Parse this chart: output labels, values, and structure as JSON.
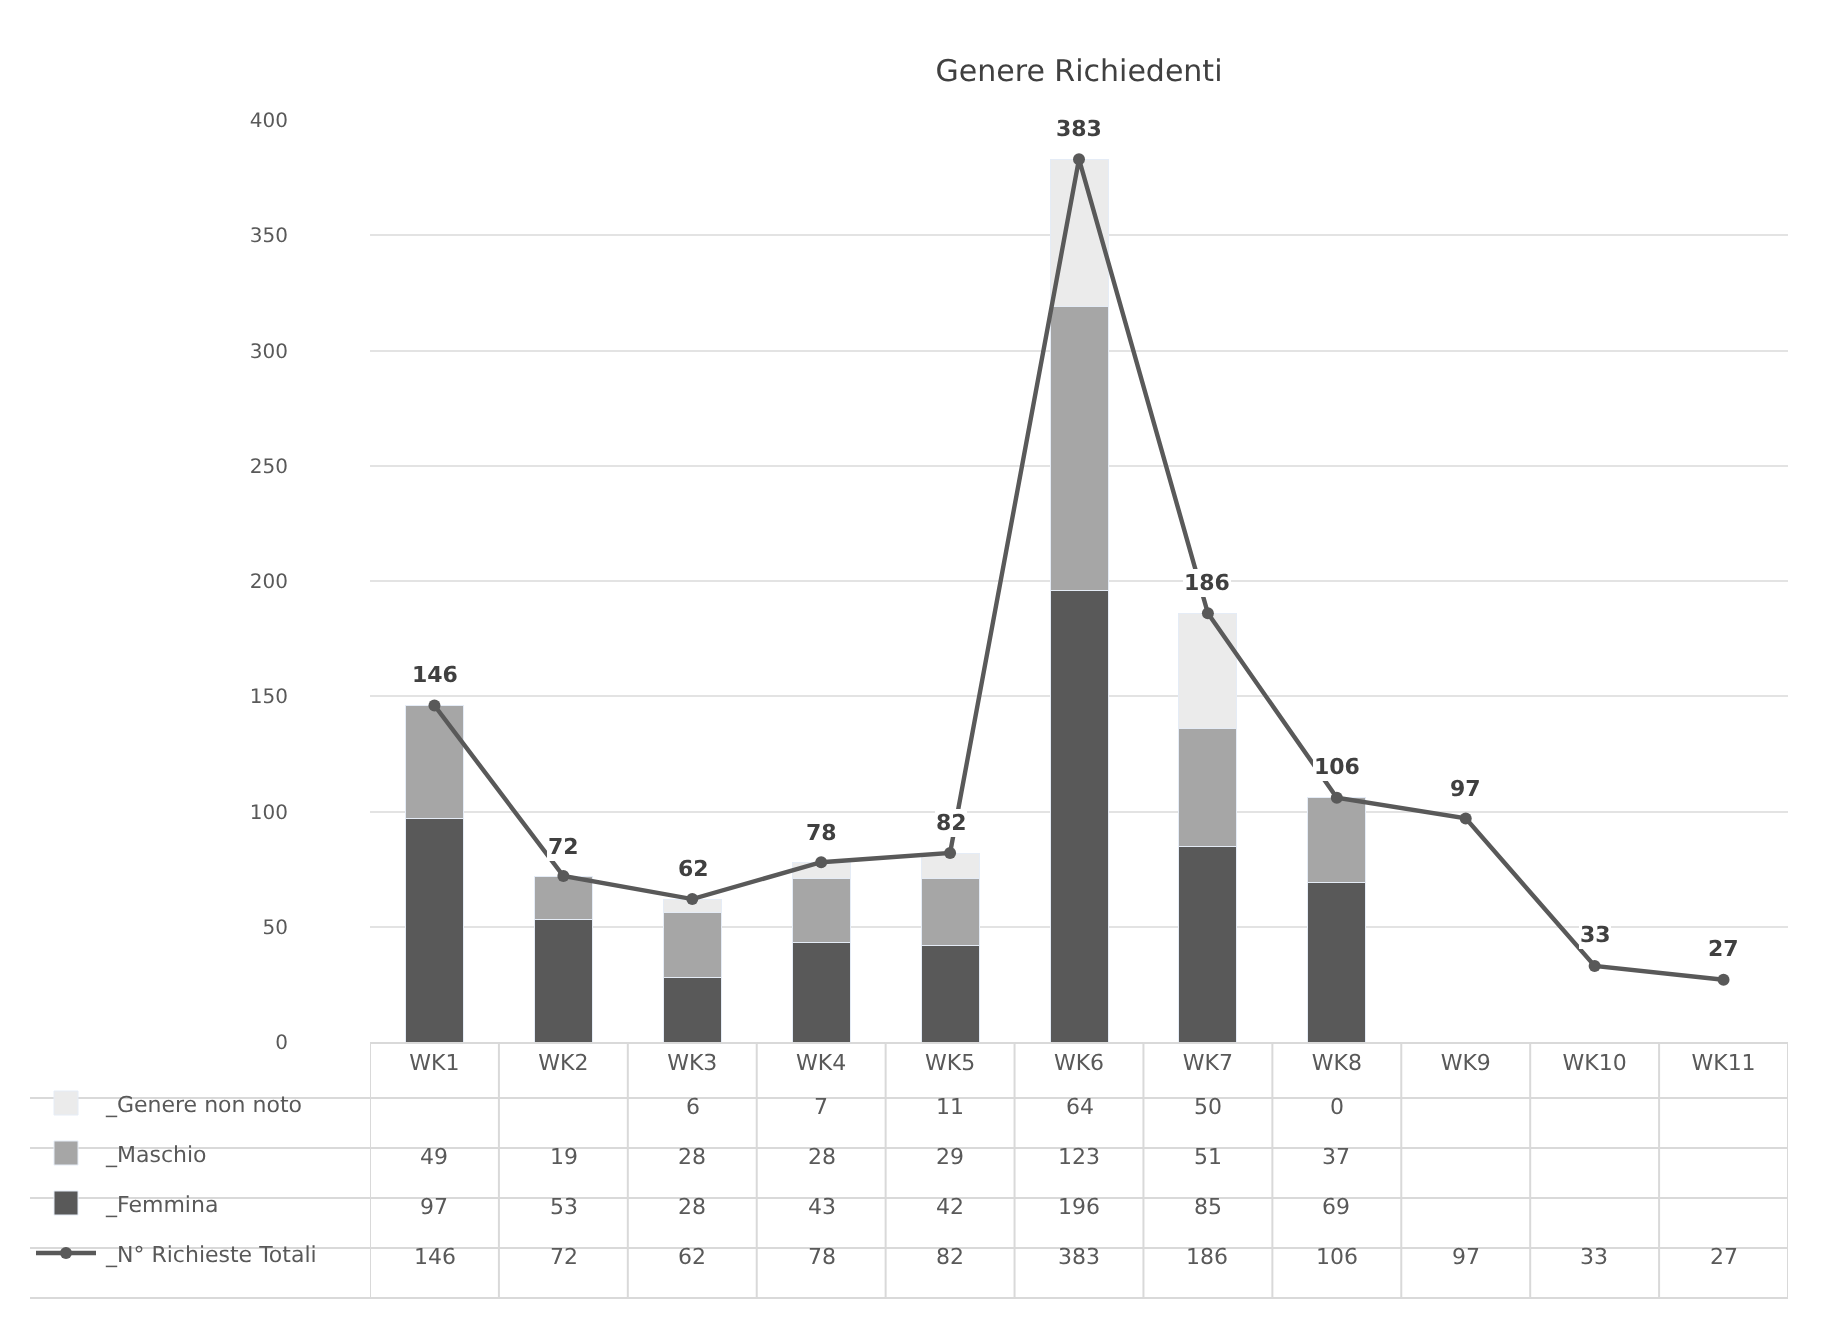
{
  "chart_data": {
    "type": "bar",
    "title": "Genere Richiedenti",
    "stacked": true,
    "grid": "y",
    "legend": "bottom left",
    "marker": "circle",
    "categories": [
      "WK1",
      "WK2",
      "WK3",
      "WK4",
      "WK5",
      "WK6",
      "WK7",
      "WK8",
      "WK9",
      "WK10",
      "WK11"
    ],
    "ylim": [
      0,
      400
    ],
    "yticks": [
      0,
      50,
      100,
      150,
      200,
      250,
      300,
      350,
      400
    ],
    "series": [
      {
        "name": "_Femmina",
        "color": "#595959",
        "values": [
          97,
          53,
          28,
          43,
          42,
          196,
          85,
          69,
          null,
          null,
          null
        ],
        "value_labels": [
          "97",
          "53",
          "28",
          "43",
          "42",
          "196",
          "85",
          "69",
          null,
          null,
          null
        ]
      },
      {
        "name": "_Maschio",
        "color": "#a6a6a6",
        "values": [
          49,
          19,
          28,
          28,
          29,
          123,
          51,
          37,
          null,
          null,
          null
        ],
        "value_labels": [
          "49",
          "19",
          "28",
          "28",
          "29",
          "123",
          "51",
          "37",
          null,
          null,
          null
        ]
      },
      {
        "name": "_Genere non noto",
        "color": "#ebebeb",
        "values": [
          null,
          null,
          6,
          7,
          11,
          64,
          50,
          0,
          null,
          null,
          null
        ],
        "value_labels": [
          null,
          null,
          "6",
          "7",
          "11",
          "64",
          "50",
          "0",
          null,
          null,
          null
        ]
      },
      {
        "name": "_N° Richieste Totali",
        "type": "line",
        "color": "#595959",
        "values": [
          146,
          72,
          62,
          78,
          82,
          383,
          186,
          106,
          97,
          33,
          27
        ],
        "value_labels": [
          "146",
          "72",
          "62",
          "78",
          "82",
          "383",
          "186",
          "106",
          "97",
          "33",
          "27"
        ]
      }
    ]
  }
}
